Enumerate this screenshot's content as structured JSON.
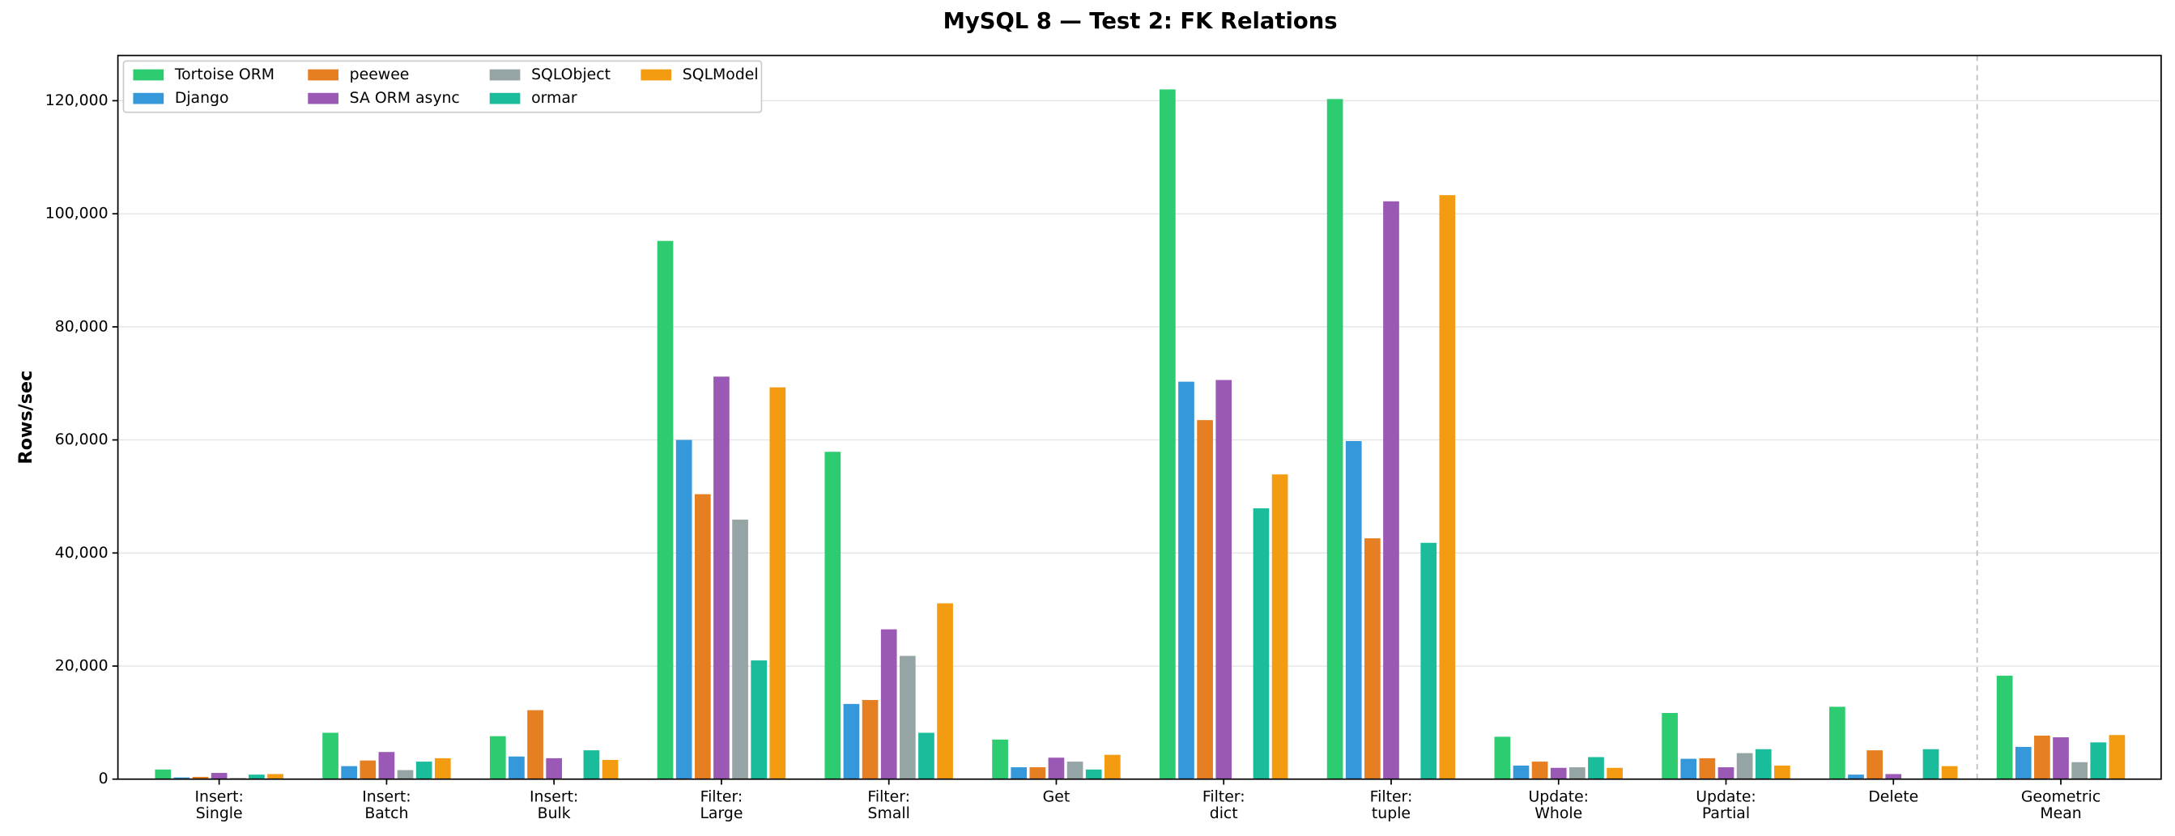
{
  "chart_data": {
    "type": "bar",
    "title": "MySQL 8 — Test 2: FK Relations",
    "y_label": "Rows/sec",
    "categories": [
      [
        "Insert:",
        "Single"
      ],
      [
        "Insert:",
        "Batch"
      ],
      [
        "Insert:",
        "Bulk"
      ],
      [
        "Filter:",
        "Large"
      ],
      [
        "Filter:",
        "Small"
      ],
      [
        "Get"
      ],
      [
        "Filter:",
        "dict"
      ],
      [
        "Filter:",
        "tuple"
      ],
      [
        "Update:",
        "Whole"
      ],
      [
        "Update:",
        "Partial"
      ],
      [
        "Delete"
      ],
      [
        "Geometric",
        "Mean"
      ]
    ],
    "series": [
      {
        "name": "Tortoise ORM",
        "color": "#2ecc71",
        "values": [
          1700,
          8200,
          7600,
          95200,
          57900,
          7000,
          122000,
          120300,
          7500,
          11700,
          12800,
          18300
        ]
      },
      {
        "name": "Django",
        "color": "#3498db",
        "values": [
          300,
          2300,
          4000,
          60000,
          13300,
          2100,
          70300,
          59800,
          2400,
          3600,
          800,
          5700
        ]
      },
      {
        "name": "peewee",
        "color": "#e67e22",
        "values": [
          400,
          3300,
          12200,
          50400,
          14000,
          2100,
          63500,
          42600,
          3100,
          3700,
          5100,
          7700
        ]
      },
      {
        "name": "SA ORM async",
        "color": "#9b59b6",
        "values": [
          1100,
          4800,
          3700,
          71200,
          26500,
          3800,
          70600,
          102200,
          2000,
          2100,
          900,
          7400
        ]
      },
      {
        "name": "SQLObject",
        "color": "#95a5a6",
        "values": [
          200,
          1600,
          null,
          45900,
          21800,
          3100,
          null,
          null,
          2100,
          4600,
          null,
          3000
        ]
      },
      {
        "name": "ormar",
        "color": "#1abc9c",
        "values": [
          800,
          3100,
          5100,
          21000,
          8200,
          1700,
          47900,
          41800,
          3900,
          5300,
          5300,
          6500
        ]
      },
      {
        "name": "SQLModel",
        "color": "#f39c12",
        "values": [
          900,
          3700,
          3400,
          69300,
          31100,
          4300,
          53900,
          103300,
          2000,
          2400,
          2300,
          7800
        ]
      }
    ],
    "ylim": [
      0,
      128000
    ],
    "yticks": [
      0,
      {
        "value": 20000,
        "label": "20,000"
      },
      {
        "value": 40000,
        "label": "40,000"
      },
      {
        "value": 60000,
        "label": "60,000"
      },
      {
        "value": 80000,
        "label": "80,000"
      },
      {
        "value": 100000,
        "label": "100,000"
      },
      {
        "value": 120000,
        "label": "120,000"
      }
    ],
    "grid": true,
    "legend": "upper left"
  }
}
